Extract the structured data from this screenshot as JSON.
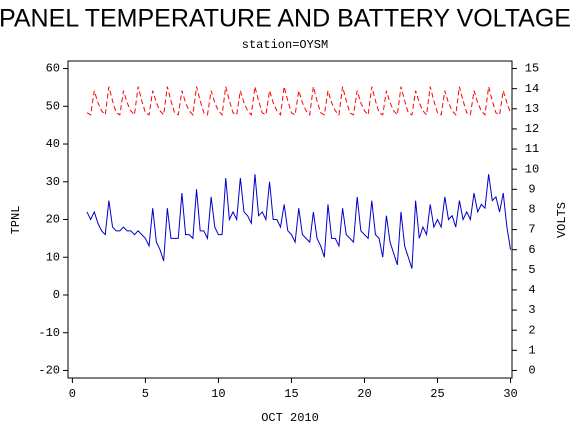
{
  "chart_data": {
    "type": "line",
    "title": "PANEL TEMPERATURE AND BATTERY VOLTAGE",
    "subtitle": "station=OYSM",
    "x_label": "OCT 2010",
    "y_label": "TPNL",
    "y2_label": "VOLTS",
    "xlim": [
      -0.3,
      30.1
    ],
    "xticks": [
      0,
      5,
      10,
      15,
      20,
      25,
      30
    ],
    "ylim": [
      -22,
      62
    ],
    "yticks": [
      -20,
      -10,
      0,
      10,
      20,
      30,
      40,
      50,
      60
    ],
    "y2lim": [
      -0.375,
      15.375
    ],
    "y2ticks": [
      0,
      1,
      2,
      3,
      4,
      5,
      6,
      7,
      8,
      9,
      10,
      11,
      12,
      13,
      14,
      15
    ],
    "x": [
      1,
      1.25,
      1.5,
      1.75,
      2,
      2.25,
      2.5,
      2.75,
      3,
      3.25,
      3.5,
      3.75,
      4,
      4.25,
      4.5,
      4.75,
      5,
      5.25,
      5.5,
      5.75,
      6,
      6.25,
      6.5,
      6.75,
      7,
      7.25,
      7.5,
      7.75,
      8,
      8.25,
      8.5,
      8.75,
      9,
      9.25,
      9.5,
      9.75,
      10,
      10.25,
      10.5,
      10.75,
      11,
      11.25,
      11.5,
      11.75,
      12,
      12.25,
      12.5,
      12.75,
      13,
      13.25,
      13.5,
      13.75,
      14,
      14.25,
      14.5,
      14.75,
      15,
      15.25,
      15.5,
      15.75,
      16,
      16.25,
      16.5,
      16.75,
      17,
      17.25,
      17.5,
      17.75,
      18,
      18.25,
      18.5,
      18.75,
      19,
      19.25,
      19.5,
      19.75,
      20,
      20.25,
      20.5,
      20.75,
      21,
      21.25,
      21.5,
      21.75,
      22,
      22.25,
      22.5,
      22.75,
      23,
      23.25,
      23.5,
      23.75,
      24,
      24.25,
      24.5,
      24.75,
      25,
      25.25,
      25.5,
      25.75,
      26,
      26.25,
      26.5,
      26.75,
      27,
      27.25,
      27.5,
      27.75,
      28,
      28.25,
      28.5,
      28.75,
      29,
      29.25,
      29.5,
      29.75,
      30
    ],
    "series": [
      {
        "name": "TPNL",
        "color": "#0000cc",
        "dashed": false,
        "values": [
          22,
          20,
          22,
          19,
          17,
          16,
          25,
          18,
          17,
          17,
          18,
          17,
          17,
          16,
          17,
          16,
          15,
          13,
          23,
          14,
          12,
          9,
          23,
          15,
          15,
          15,
          27,
          16,
          16,
          15,
          28,
          17,
          17,
          15,
          26,
          18,
          16,
          16,
          31,
          20,
          22,
          20,
          31,
          22,
          21,
          19,
          32,
          21,
          22,
          20,
          30,
          20,
          20,
          18,
          24,
          17,
          16,
          14,
          23,
          16,
          15,
          14,
          22,
          15,
          13,
          10,
          24,
          15,
          15,
          13,
          23,
          16,
          15,
          14,
          26,
          17,
          16,
          15,
          25,
          16,
          15,
          10,
          21,
          14,
          11,
          8,
          22,
          13,
          10,
          7,
          25,
          15,
          18,
          16,
          24,
          18,
          20,
          18,
          26,
          20,
          21,
          18,
          25,
          20,
          22,
          20,
          27,
          22,
          24,
          23,
          32,
          25,
          26,
          22,
          27,
          18,
          12
        ]
      },
      {
        "name": "VOLTS",
        "color": "#ff0000",
        "dashed": true,
        "axis": "y2",
        "values": [
          12.8,
          12.7,
          13.9,
          13.3,
          12.9,
          12.7,
          14.1,
          13.4,
          12.8,
          12.7,
          13.9,
          13.3,
          12.9,
          12.7,
          14.1,
          13.4,
          12.8,
          12.7,
          13.9,
          13.3,
          12.9,
          12.7,
          14.1,
          13.4,
          12.8,
          12.7,
          13.9,
          13.3,
          12.9,
          12.7,
          14.1,
          13.4,
          12.8,
          12.7,
          13.9,
          13.3,
          12.9,
          12.7,
          14.1,
          13.4,
          12.8,
          12.7,
          13.9,
          13.3,
          12.9,
          12.7,
          14.1,
          13.4,
          12.8,
          12.7,
          13.9,
          13.3,
          12.9,
          12.7,
          14.1,
          13.4,
          12.8,
          12.7,
          13.9,
          13.3,
          12.9,
          12.7,
          14.1,
          13.4,
          12.8,
          12.7,
          13.9,
          13.3,
          12.9,
          12.7,
          14.1,
          13.4,
          12.8,
          12.7,
          13.9,
          13.3,
          12.9,
          12.7,
          14.1,
          13.4,
          12.8,
          12.7,
          13.9,
          13.3,
          12.9,
          12.7,
          14.1,
          13.4,
          12.8,
          12.7,
          13.9,
          13.3,
          12.9,
          12.7,
          14.1,
          13.4,
          12.8,
          12.7,
          13.9,
          13.3,
          12.9,
          12.7,
          14.1,
          13.4,
          12.8,
          12.7,
          13.9,
          13.3,
          12.9,
          12.7,
          14.1,
          13.4,
          12.8,
          12.7,
          13.9,
          13.3,
          12.8
        ]
      }
    ]
  }
}
